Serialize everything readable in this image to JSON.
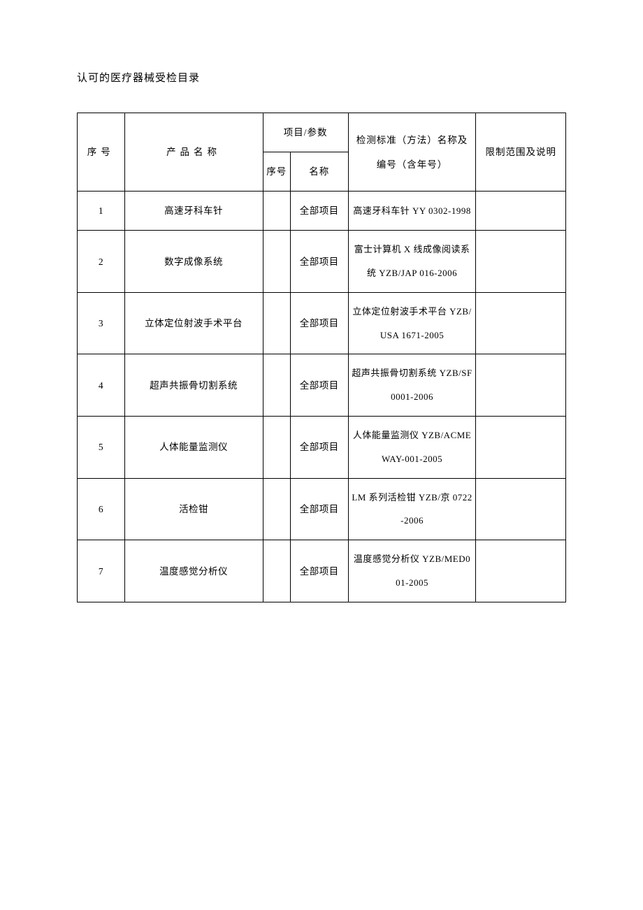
{
  "title": "认可的医疗器械受检目录",
  "table": {
    "headers": {
      "seq": "序号",
      "product": "产品名称",
      "param_group": "项目/参数",
      "sub_seq": "序号",
      "sub_name": "名称",
      "standard": "检测标准（方法）名称及编号（含年号）",
      "limit": "限制范围及说明"
    },
    "rows": [
      {
        "seq": "1",
        "product": "高速牙科车针",
        "sub_seq": "",
        "sub_name": "全部项目",
        "standard": "高速牙科车针 YY 0302-1998",
        "limit": ""
      },
      {
        "seq": "2",
        "product": "数字成像系统",
        "sub_seq": "",
        "sub_name": "全部项目",
        "standard": "富士计算机 X 线成像阅读系统 YZB/JAP 016-2006",
        "limit": ""
      },
      {
        "seq": "3",
        "product": "立体定位射波手术平台",
        "sub_seq": "",
        "sub_name": "全部项目",
        "standard": "立体定位射波手术平台 YZB/USA 1671-2005",
        "limit": ""
      },
      {
        "seq": "4",
        "product": "超声共振骨切割系统",
        "sub_seq": "",
        "sub_name": "全部项目",
        "standard": "超声共振骨切割系统 YZB/SF 0001-2006",
        "limit": ""
      },
      {
        "seq": "5",
        "product": "人体能量监测仪",
        "sub_seq": "",
        "sub_name": "全部项目",
        "standard": "人体能量监测仪 YZB/ACMEWAY-001-2005",
        "limit": ""
      },
      {
        "seq": "6",
        "product": "活检钳",
        "sub_seq": "",
        "sub_name": "全部项目",
        "standard": "LM 系列活检钳 YZB/京 0722-2006",
        "limit": ""
      },
      {
        "seq": "7",
        "product": "温度感觉分析仪",
        "sub_seq": "",
        "sub_name": "全部项目",
        "standard": "温度感觉分析仪 YZB/MED001-2005",
        "limit": ""
      }
    ],
    "column_widths": {
      "seq": 62,
      "product": 182,
      "sub_seq": 36,
      "sub_name": 76,
      "standard": 168,
      "limit": 118
    },
    "border_color": "#000000",
    "background_color": "#ffffff",
    "font_size_header": 13.5,
    "font_size_cell": 13.5
  }
}
